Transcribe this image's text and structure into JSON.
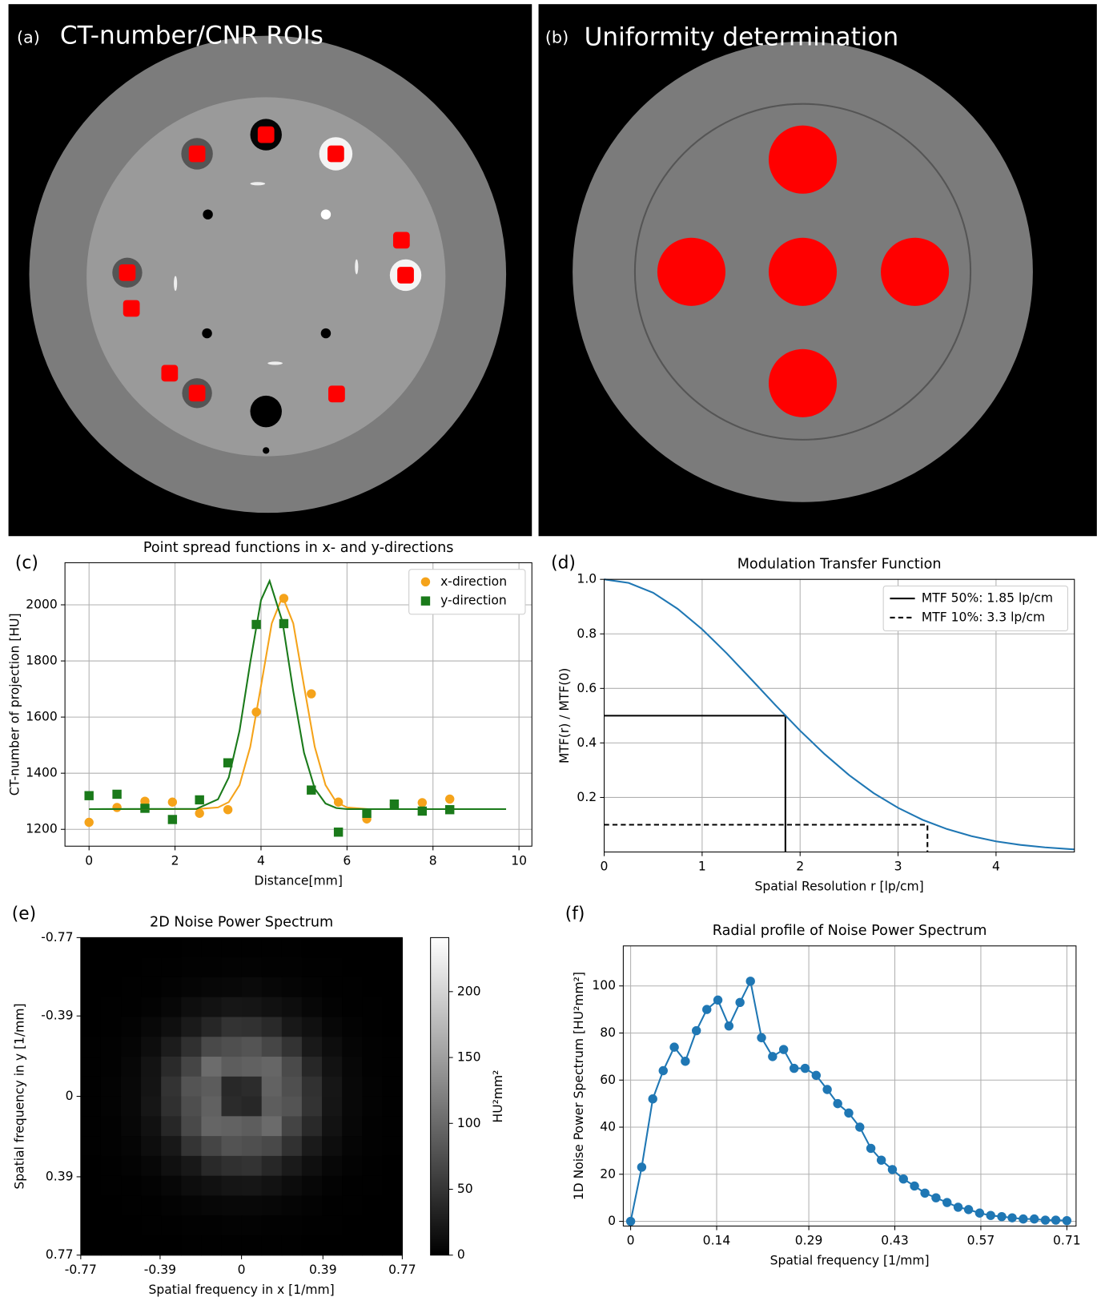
{
  "images": [
    {
      "label": "(a)",
      "title": "CT-number/CNR ROIs"
    },
    {
      "label": "(b)",
      "title": "Uniformity determination"
    }
  ],
  "chart_data": [
    {
      "type": "scatter",
      "panel": "(c)",
      "title": "Point spread functions in x- and y-directions",
      "xlabel": "Distance[mm]",
      "ylabel": "CT-number of projection [HU]",
      "xlim": [
        -0.56,
        10.3
      ],
      "ylim": [
        1140,
        2150
      ],
      "xticks": [
        0,
        2,
        4,
        6,
        8,
        10
      ],
      "yticks": [
        1200,
        1400,
        1600,
        1800,
        2000
      ],
      "grid": true,
      "legend": "upper right",
      "series": [
        {
          "name": "x-direction",
          "color": "#f5a31a",
          "marker": "circle",
          "line": false,
          "x": [
            0,
            0.65,
            1.3,
            1.94,
            2.57,
            3.23,
            3.89,
            4.53,
            5.17,
            5.8,
            6.46,
            7.1,
            7.75,
            8.39
          ],
          "values": [
            1225,
            1278,
            1300,
            1297,
            1257,
            1270,
            1618,
            2023,
            1683,
            1297,
            1237,
            1288,
            1295,
            1308
          ]
        },
        {
          "name": "y-direction",
          "color": "#1a7a1a",
          "marker": "square",
          "line": false,
          "x": [
            0,
            0.65,
            1.3,
            1.94,
            2.57,
            3.23,
            3.89,
            4.53,
            5.17,
            5.8,
            6.46,
            7.1,
            7.75,
            8.39
          ],
          "values": [
            1320,
            1325,
            1275,
            1235,
            1305,
            1437,
            1930,
            1933,
            1340,
            1190,
            1257,
            1290,
            1265,
            1270
          ]
        },
        {
          "color": "#f5a31a",
          "marker": "none",
          "line": true,
          "x": [
            0,
            2.5,
            3,
            3.25,
            3.5,
            3.75,
            4,
            4.25,
            4.5,
            4.75,
            5,
            5.25,
            5.5,
            5.75,
            6,
            6.5,
            9.7
          ],
          "values": [
            1272,
            1272,
            1278,
            1297,
            1358,
            1494,
            1711,
            1934,
            2030,
            1934,
            1711,
            1494,
            1358,
            1297,
            1278,
            1272,
            1272
          ]
        },
        {
          "color": "#1a7a1a",
          "marker": "none",
          "line": true,
          "x": [
            0,
            2.5,
            3,
            3.25,
            3.5,
            3.75,
            4,
            4.2,
            4.5,
            4.75,
            5,
            5.25,
            5.5,
            5.75,
            6,
            9.7
          ],
          "values": [
            1272,
            1273,
            1307,
            1385,
            1551,
            1795,
            2017,
            2085,
            1939,
            1692,
            1473,
            1345,
            1292,
            1276,
            1272,
            1272
          ]
        }
      ]
    },
    {
      "type": "line",
      "panel": "(d)",
      "title": "Modulation Transfer Function",
      "xlabel": "Spatial Resolution r [lp/cm]",
      "ylabel": "MTF(r) / MTF(0)",
      "xlim": [
        0,
        4.8
      ],
      "ylim": [
        0,
        1
      ],
      "xticks": [
        0,
        1,
        2,
        3,
        4
      ],
      "yticks": [
        0.2,
        0.4,
        0.6,
        0.8,
        {
          "value": 1,
          "label": "1.0"
        }
      ],
      "grid": true,
      "legend": "upper right",
      "x": [
        0,
        0.25,
        0.5,
        0.75,
        1,
        1.25,
        1.5,
        1.75,
        2,
        2.25,
        2.5,
        2.75,
        3,
        3.25,
        3.5,
        3.75,
        4,
        4.25,
        4.5,
        4.8
      ],
      "series": [
        {
          "color": "#1f77b4",
          "marker": "none",
          "line": true,
          "values": [
            1,
            0.987,
            0.951,
            0.892,
            0.817,
            0.729,
            0.634,
            0.538,
            0.445,
            0.359,
            0.282,
            0.216,
            0.162,
            0.118,
            0.084,
            0.058,
            0.039,
            0.026,
            0.017,
            0.0094
          ]
        }
      ],
      "reference_lines": [
        {
          "label": "MTF 50%: 1.85 lp/cm",
          "x": 1.85,
          "y": 0.5,
          "style": "solid"
        },
        {
          "label": "MTF 10%: 3.3 lp/cm",
          "x": 3.3,
          "y": 0.1,
          "style": "dashed"
        }
      ]
    },
    {
      "type": "heatmap",
      "panel": "(e)",
      "title": "2D Noise Power Spectrum",
      "xlabel": "Spatial frequency in x [1/mm]",
      "ylabel": "Spatial frequency in y [1/mm]",
      "xlim": [
        -0.77,
        0.77
      ],
      "ylim": [
        0.77,
        -0.77
      ],
      "xticks": [
        -0.77,
        -0.39,
        0,
        0.39,
        0.77
      ],
      "yticks": [
        -0.77,
        -0.39,
        0,
        0.39,
        0.77
      ],
      "grid": false,
      "zlim": [
        0,
        241
      ],
      "zticks": [
        0,
        50,
        100,
        150,
        200
      ],
      "colorbar_label": "HU²mm²",
      "z": [
        [
          0,
          0,
          0,
          0,
          0,
          1,
          1,
          1,
          1,
          1,
          1,
          0,
          0,
          0,
          0,
          0
        ],
        [
          0,
          0,
          0,
          1,
          1,
          2,
          2,
          3,
          3,
          2,
          2,
          1,
          1,
          0,
          0,
          0
        ],
        [
          0,
          0,
          1,
          1,
          3,
          5,
          7,
          8,
          9,
          7,
          5,
          3,
          1,
          1,
          0,
          0
        ],
        [
          0,
          1,
          1,
          3,
          7,
          13,
          17,
          21,
          20,
          16,
          12,
          7,
          3,
          1,
          1,
          0
        ],
        [
          0,
          1,
          3,
          8,
          14,
          25,
          36,
          48,
          46,
          39,
          23,
          15,
          7,
          3,
          1,
          0
        ],
        [
          1,
          2,
          5,
          12,
          26,
          45,
          69,
          75,
          79,
          66,
          48,
          24,
          12,
          5,
          2,
          1
        ],
        [
          1,
          2,
          7,
          18,
          40,
          65,
          102,
          88,
          92,
          96,
          70,
          37,
          17,
          7,
          2,
          1
        ],
        [
          1,
          3,
          8,
          19,
          48,
          79,
          87,
          38,
          42,
          93,
          75,
          46,
          21,
          8,
          3,
          1
        ],
        [
          1,
          3,
          8,
          21,
          45,
          74,
          92,
          41,
          37,
          88,
          79,
          48,
          20,
          8,
          3,
          1
        ],
        [
          1,
          2,
          7,
          16,
          37,
          69,
          95,
          93,
          88,
          101,
          64,
          39,
          17,
          7,
          2,
          1
        ],
        [
          1,
          2,
          5,
          12,
          23,
          49,
          65,
          78,
          75,
          69,
          46,
          25,
          12,
          5,
          2,
          1
        ],
        [
          0,
          1,
          3,
          7,
          15,
          23,
          39,
          45,
          48,
          37,
          25,
          14,
          7,
          3,
          1,
          0
        ],
        [
          0,
          1,
          1,
          3,
          7,
          12,
          16,
          20,
          21,
          17,
          11,
          7,
          3,
          1,
          1,
          0
        ],
        [
          0,
          0,
          1,
          1,
          3,
          5,
          7,
          8,
          8,
          7,
          5,
          3,
          1,
          1,
          0,
          0
        ],
        [
          0,
          0,
          0,
          1,
          1,
          2,
          2,
          3,
          3,
          2,
          2,
          1,
          1,
          0,
          0,
          0
        ],
        [
          0,
          0,
          0,
          0,
          0,
          1,
          1,
          1,
          1,
          1,
          1,
          0,
          0,
          0,
          0,
          0
        ]
      ]
    },
    {
      "type": "line",
      "panel": "(f)",
      "title": "Radial profile of Noise Power Spectrum",
      "xlabel": "Spatial frequency [1/mm]",
      "ylabel": "1D Noise Power Spectrum [HU²mm²]",
      "xlim": [
        -0.012,
        0.725
      ],
      "ylim": [
        -2,
        117
      ],
      "xticks": [
        0,
        0.14,
        0.29,
        0.43,
        0.57,
        0.71
      ],
      "yticks": [
        0,
        20,
        40,
        60,
        80,
        100
      ],
      "grid": true,
      "x": [
        0,
        0.018,
        0.036,
        0.053,
        0.071,
        0.089,
        0.107,
        0.124,
        0.142,
        0.16,
        0.178,
        0.195,
        0.213,
        0.231,
        0.249,
        0.266,
        0.284,
        0.302,
        0.32,
        0.337,
        0.355,
        0.373,
        0.391,
        0.408,
        0.426,
        0.444,
        0.462,
        0.479,
        0.497,
        0.515,
        0.533,
        0.55,
        0.568,
        0.586,
        0.604,
        0.621,
        0.639,
        0.657,
        0.675,
        0.692,
        0.71
      ],
      "series": [
        {
          "color": "#1f77b4",
          "marker": "circle",
          "line": true,
          "values": [
            0,
            23,
            52,
            64,
            74,
            68,
            81,
            90,
            94,
            83,
            93,
            102,
            78,
            70,
            73,
            65,
            65,
            62,
            56,
            50,
            46,
            40,
            31,
            26,
            22,
            18,
            15,
            12,
            10,
            8,
            6,
            5,
            3.5,
            2.5,
            2,
            1.5,
            1,
            1,
            0.5,
            0.5,
            0.3
          ]
        }
      ]
    }
  ]
}
